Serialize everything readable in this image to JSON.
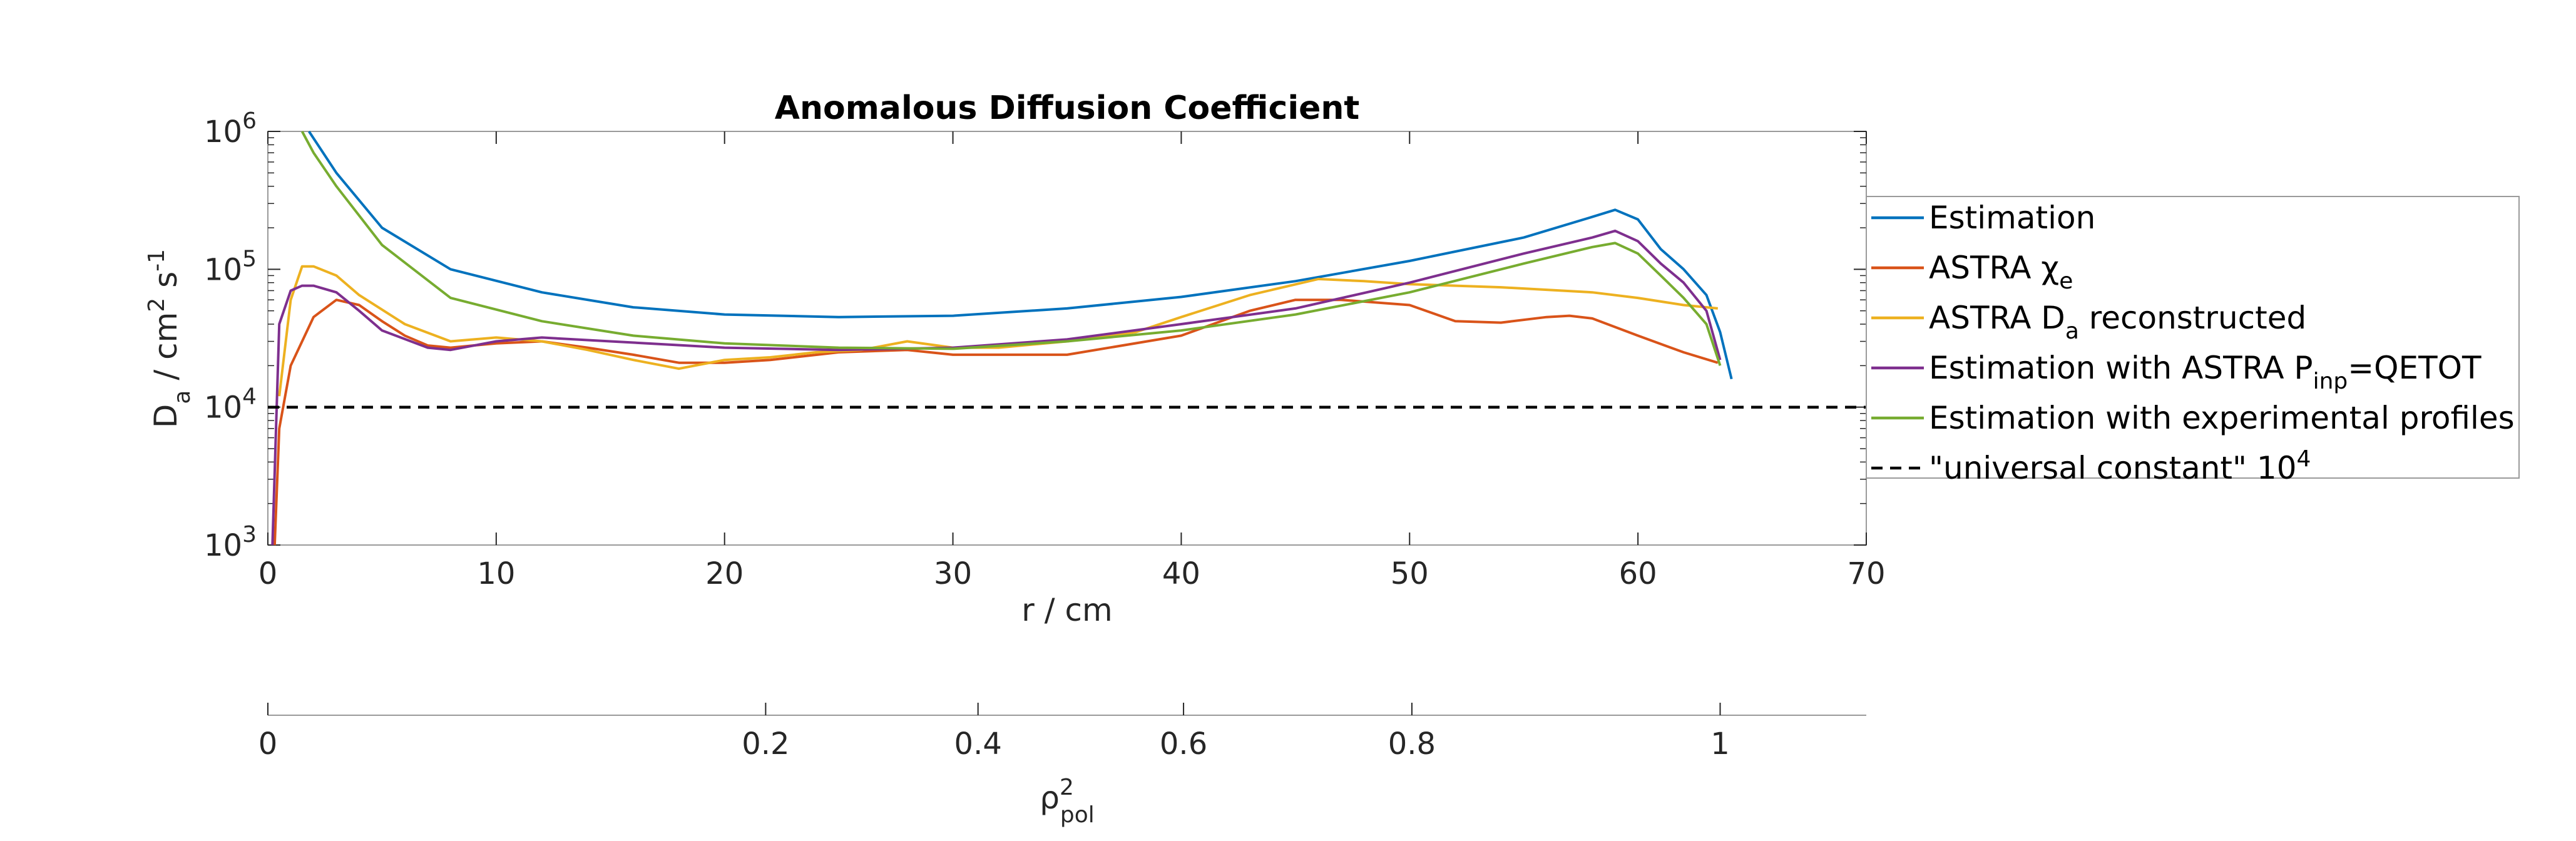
{
  "chart_data": {
    "type": "line",
    "title": "Anomalous Diffusion Coefficient",
    "xlabel": "r / cm",
    "ylabel": "D_a / cm^2 s^-1",
    "xlim": [
      0,
      70
    ],
    "ylim": [
      1000,
      1000000
    ],
    "yscale": "log",
    "x_ticks": [
      "0",
      "10",
      "20",
      "30",
      "40",
      "50",
      "60",
      "70"
    ],
    "y_ticks": [
      "10^3",
      "10^4",
      "10^5",
      "10^6"
    ],
    "secondary_axis": {
      "label": "ρ^2_pol",
      "ticks": [
        {
          "label": "0",
          "r": 0
        },
        {
          "label": "0.2",
          "r": 21.8
        },
        {
          "label": "0.4",
          "r": 31.1
        },
        {
          "label": "0.6",
          "r": 40.1
        },
        {
          "label": "0.8",
          "r": 50.1
        },
        {
          "label": "1",
          "r": 63.6
        }
      ]
    },
    "legend_position": "right",
    "series": [
      {
        "name": "Estimation",
        "color": "#0072BD",
        "dash": false,
        "points": [
          [
            1.8,
            1000000
          ],
          [
            3,
            500000
          ],
          [
            5,
            200000
          ],
          [
            8,
            100000
          ],
          [
            12,
            68000
          ],
          [
            16,
            53000
          ],
          [
            20,
            47000
          ],
          [
            25,
            45000
          ],
          [
            30,
            46000
          ],
          [
            35,
            52000
          ],
          [
            40,
            63000
          ],
          [
            45,
            82000
          ],
          [
            50,
            115000
          ],
          [
            55,
            170000
          ],
          [
            58,
            240000
          ],
          [
            59,
            270000
          ],
          [
            60,
            230000
          ],
          [
            61,
            140000
          ],
          [
            62,
            100000
          ],
          [
            63,
            65000
          ],
          [
            63.6,
            35000
          ],
          [
            64.1,
            16000
          ]
        ]
      },
      {
        "name": "ASTRA χ_e",
        "color": "#D95319",
        "dash": false,
        "points": [
          [
            0.3,
            1000
          ],
          [
            0.5,
            7000
          ],
          [
            1,
            20000
          ],
          [
            2,
            45000
          ],
          [
            3,
            60000
          ],
          [
            4,
            55000
          ],
          [
            5,
            42000
          ],
          [
            6,
            33000
          ],
          [
            7,
            28000
          ],
          [
            8,
            27000
          ],
          [
            9,
            28000
          ],
          [
            10,
            29000
          ],
          [
            12,
            30000
          ],
          [
            14,
            27000
          ],
          [
            16,
            24000
          ],
          [
            18,
            21000
          ],
          [
            20,
            21000
          ],
          [
            22,
            22000
          ],
          [
            25,
            25000
          ],
          [
            28,
            26000
          ],
          [
            30,
            24000
          ],
          [
            35,
            24000
          ],
          [
            40,
            33000
          ],
          [
            43,
            50000
          ],
          [
            45,
            60000
          ],
          [
            47,
            60000
          ],
          [
            50,
            55000
          ],
          [
            52,
            42000
          ],
          [
            54,
            41000
          ],
          [
            56,
            45000
          ],
          [
            57,
            46000
          ],
          [
            58,
            44000
          ],
          [
            60,
            33000
          ],
          [
            62,
            25000
          ],
          [
            63.5,
            21000
          ]
        ]
      },
      {
        "name": "ASTRA D_a reconstructed",
        "color": "#EDB120",
        "dash": false,
        "points": [
          [
            0.5,
            12000
          ],
          [
            1,
            60000
          ],
          [
            1.5,
            105000
          ],
          [
            2,
            105000
          ],
          [
            3,
            90000
          ],
          [
            4,
            65000
          ],
          [
            6,
            40000
          ],
          [
            8,
            30000
          ],
          [
            10,
            32000
          ],
          [
            12,
            30000
          ],
          [
            14,
            26000
          ],
          [
            16,
            22000
          ],
          [
            18,
            19000
          ],
          [
            20,
            22000
          ],
          [
            22,
            23000
          ],
          [
            24,
            25000
          ],
          [
            26,
            26000
          ],
          [
            28,
            30000
          ],
          [
            30,
            27000
          ],
          [
            32,
            27000
          ],
          [
            35,
            30000
          ],
          [
            38,
            35000
          ],
          [
            40,
            45000
          ],
          [
            43,
            65000
          ],
          [
            46,
            85000
          ],
          [
            48,
            82000
          ],
          [
            50,
            78000
          ],
          [
            54,
            74000
          ],
          [
            58,
            68000
          ],
          [
            60,
            62000
          ],
          [
            62,
            55000
          ],
          [
            63.5,
            52000
          ]
        ]
      },
      {
        "name": "Estimation with ASTRA P_inp=QETOT",
        "color": "#7E2F8E",
        "dash": false,
        "points": [
          [
            0.2,
            1000
          ],
          [
            0.5,
            40000
          ],
          [
            1,
            70000
          ],
          [
            1.5,
            76000
          ],
          [
            2,
            76000
          ],
          [
            3,
            68000
          ],
          [
            4,
            50000
          ],
          [
            5,
            36000
          ],
          [
            7,
            27000
          ],
          [
            8,
            26000
          ],
          [
            10,
            30000
          ],
          [
            12,
            32000
          ],
          [
            15,
            30000
          ],
          [
            20,
            27000
          ],
          [
            25,
            26000
          ],
          [
            30,
            27000
          ],
          [
            35,
            31000
          ],
          [
            40,
            40000
          ],
          [
            45,
            52000
          ],
          [
            50,
            80000
          ],
          [
            55,
            130000
          ],
          [
            58,
            170000
          ],
          [
            59,
            190000
          ],
          [
            60,
            160000
          ],
          [
            61,
            110000
          ],
          [
            62,
            80000
          ],
          [
            63,
            50000
          ],
          [
            63.6,
            22000
          ]
        ]
      },
      {
        "name": "Estimation with experimental profiles",
        "color": "#77AC30",
        "dash": false,
        "points": [
          [
            1.5,
            1000000
          ],
          [
            2,
            700000
          ],
          [
            3,
            400000
          ],
          [
            5,
            150000
          ],
          [
            8,
            62000
          ],
          [
            12,
            42000
          ],
          [
            16,
            33000
          ],
          [
            20,
            29000
          ],
          [
            25,
            27000
          ],
          [
            30,
            26500
          ],
          [
            35,
            30000
          ],
          [
            40,
            36000
          ],
          [
            45,
            47000
          ],
          [
            50,
            68000
          ],
          [
            55,
            110000
          ],
          [
            58,
            145000
          ],
          [
            59,
            155000
          ],
          [
            60,
            130000
          ],
          [
            61,
            90000
          ],
          [
            62,
            62000
          ],
          [
            63,
            40000
          ],
          [
            63.6,
            20000
          ]
        ]
      },
      {
        "name": "\"universal constant\" 10^4",
        "color": "#000000",
        "dash": true,
        "points": [
          [
            0,
            10000
          ],
          [
            70,
            10000
          ]
        ]
      }
    ]
  }
}
